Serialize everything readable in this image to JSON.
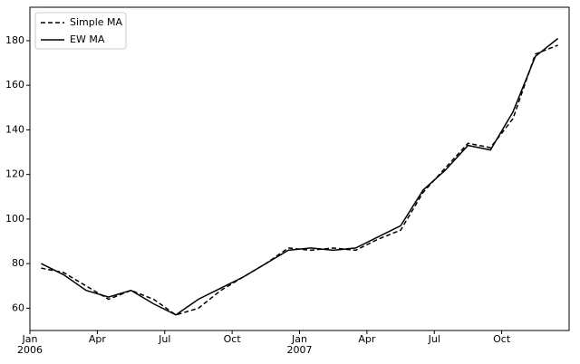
{
  "chart_data": {
    "type": "line",
    "x": [
      "2006-01",
      "2006-02",
      "2006-03",
      "2006-04",
      "2006-05",
      "2006-06",
      "2006-07",
      "2006-08",
      "2006-09",
      "2006-10",
      "2006-11",
      "2006-12",
      "2007-01",
      "2007-02",
      "2007-03",
      "2007-04",
      "2007-05",
      "2007-06",
      "2007-07",
      "2007-08",
      "2007-09",
      "2007-10",
      "2007-11",
      "2007-12"
    ],
    "series": [
      {
        "name": "Simple MA",
        "color": "#000000",
        "dash": true,
        "values": [
          78,
          76,
          70,
          64,
          68,
          64,
          57,
          60,
          68,
          74,
          80,
          87,
          86,
          87,
          86,
          91,
          95,
          112,
          123,
          134,
          132,
          145,
          174,
          178
        ]
      },
      {
        "name": "EW MA",
        "color": "#000000",
        "dash": false,
        "values": [
          80,
          75,
          68,
          65,
          68,
          62,
          57,
          64,
          69,
          74,
          80,
          86,
          87,
          86,
          87,
          92,
          97,
          113,
          122,
          133,
          131,
          148,
          173,
          181
        ]
      }
    ],
    "xlim": [
      "2006-01",
      "2007-12"
    ],
    "xticks": [
      {
        "value": "2006-01",
        "label": "Jan\n2006"
      },
      {
        "value": "2006-04",
        "label": "Apr"
      },
      {
        "value": "2006-07",
        "label": "Jul"
      },
      {
        "value": "2006-10",
        "label": "Oct"
      },
      {
        "value": "2007-01",
        "label": "Jan\n2007"
      },
      {
        "value": "2007-04",
        "label": "Apr"
      },
      {
        "value": "2007-07",
        "label": "Jul"
      },
      {
        "value": "2007-10",
        "label": "Oct"
      }
    ],
    "ylim": [
      50,
      195
    ],
    "yticks": [
      60,
      80,
      100,
      120,
      140,
      160,
      180
    ],
    "legend": "upper left"
  }
}
